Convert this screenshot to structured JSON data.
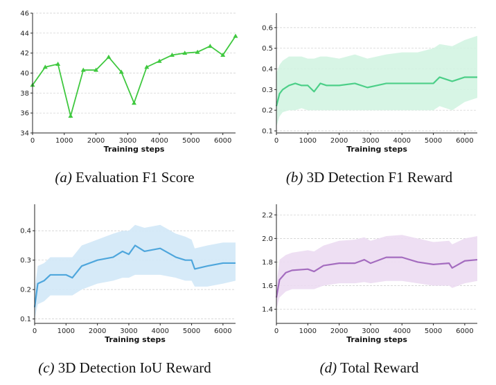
{
  "chart_data": [
    {
      "type": "line",
      "caption_label": "(a)",
      "caption_text": "Evaluation F1 Score",
      "xlabel": "Training steps",
      "ylabel": "",
      "xlim": [
        0,
        6400
      ],
      "ylim": [
        34,
        46
      ],
      "xticks": [
        0,
        1000,
        2000,
        3000,
        4000,
        5000,
        6000
      ],
      "yticks": [
        34,
        36,
        38,
        40,
        42,
        44,
        46
      ],
      "grid": "horizontal dashed",
      "marker": "triangle",
      "color": "#3fc83f",
      "x": [
        0,
        400,
        800,
        1200,
        1600,
        2000,
        2400,
        2800,
        3200,
        3600,
        4000,
        4400,
        4800,
        5200,
        5600,
        6000,
        6400
      ],
      "y": [
        38.8,
        40.6,
        40.9,
        35.7,
        40.3,
        40.3,
        41.6,
        40.1,
        37.0,
        40.6,
        41.2,
        41.8,
        42.0,
        42.1,
        42.7,
        41.8,
        43.7
      ]
    },
    {
      "type": "line",
      "caption_label": "(b)",
      "caption_text": "3D Detection F1 Reward",
      "xlabel": "Training steps",
      "ylabel": "",
      "xlim": [
        0,
        6400
      ],
      "ylim": [
        0.09,
        0.67
      ],
      "xticks": [
        0,
        1000,
        2000,
        3000,
        4000,
        5000,
        6000
      ],
      "yticks": [
        0.1,
        0.2,
        0.3,
        0.4,
        0.5,
        0.6
      ],
      "grid": "horizontal dashed",
      "color": "#4ccf88",
      "band_color": "#d3f4e2",
      "x": [
        0,
        100,
        200,
        400,
        600,
        800,
        1000,
        1200,
        1400,
        1600,
        2000,
        2500,
        2900,
        3200,
        3500,
        4000,
        4500,
        5000,
        5200,
        5600,
        6000,
        6400
      ],
      "smoothed": [
        0.22,
        0.28,
        0.3,
        0.32,
        0.33,
        0.32,
        0.32,
        0.29,
        0.33,
        0.32,
        0.32,
        0.33,
        0.31,
        0.32,
        0.33,
        0.33,
        0.33,
        0.33,
        0.36,
        0.34,
        0.36,
        0.36
      ],
      "band_low": [
        0.12,
        0.17,
        0.19,
        0.2,
        0.2,
        0.21,
        0.2,
        0.2,
        0.2,
        0.2,
        0.2,
        0.2,
        0.2,
        0.2,
        0.2,
        0.2,
        0.2,
        0.2,
        0.22,
        0.2,
        0.24,
        0.26
      ],
      "band_high": [
        0.38,
        0.42,
        0.44,
        0.46,
        0.46,
        0.46,
        0.45,
        0.45,
        0.46,
        0.46,
        0.45,
        0.47,
        0.45,
        0.46,
        0.47,
        0.48,
        0.48,
        0.5,
        0.52,
        0.51,
        0.54,
        0.56
      ]
    },
    {
      "type": "line",
      "caption_label": "(c)",
      "caption_text": "3D Detection IoU Reward",
      "xlabel": "Training steps",
      "ylabel": "",
      "xlim": [
        0,
        6400
      ],
      "ylim": [
        0.085,
        0.49
      ],
      "xticks": [
        0,
        1000,
        2000,
        3000,
        4000,
        5000,
        6000
      ],
      "yticks": [
        0.1,
        0.2,
        0.3,
        0.4
      ],
      "grid": "horizontal dashed",
      "color": "#4ea6dc",
      "band_color": "#d2e8f7",
      "x": [
        0,
        100,
        300,
        500,
        1000,
        1200,
        1500,
        2000,
        2500,
        2800,
        3000,
        3200,
        3500,
        4000,
        4500,
        4800,
        5000,
        5100,
        5500,
        6000,
        6400
      ],
      "smoothed": [
        0.14,
        0.22,
        0.23,
        0.25,
        0.25,
        0.24,
        0.28,
        0.3,
        0.31,
        0.33,
        0.32,
        0.35,
        0.33,
        0.34,
        0.31,
        0.3,
        0.3,
        0.27,
        0.28,
        0.29,
        0.29
      ],
      "band_low": [
        0.1,
        0.15,
        0.16,
        0.18,
        0.18,
        0.18,
        0.2,
        0.22,
        0.23,
        0.24,
        0.24,
        0.25,
        0.25,
        0.25,
        0.24,
        0.23,
        0.23,
        0.21,
        0.21,
        0.22,
        0.23
      ],
      "band_high": [
        0.2,
        0.28,
        0.29,
        0.31,
        0.31,
        0.31,
        0.35,
        0.37,
        0.39,
        0.4,
        0.4,
        0.42,
        0.41,
        0.42,
        0.39,
        0.38,
        0.37,
        0.34,
        0.35,
        0.36,
        0.36
      ]
    },
    {
      "type": "line",
      "caption_label": "(d)",
      "caption_text": "Total Reward",
      "xlabel": "Training steps",
      "ylabel": "",
      "xlim": [
        0,
        6400
      ],
      "ylim": [
        1.28,
        2.29
      ],
      "xticks": [
        0,
        1000,
        2000,
        3000,
        4000,
        5000,
        6000
      ],
      "yticks": [
        1.4,
        1.6,
        1.8,
        2.0,
        2.2
      ],
      "grid": "horizontal dashed",
      "color": "#a46cbf",
      "band_color": "#ecdcf2",
      "x": [
        0,
        100,
        300,
        500,
        1000,
        1200,
        1500,
        2000,
        2500,
        2800,
        3000,
        3500,
        4000,
        4500,
        5000,
        5500,
        5600,
        6000,
        6400
      ],
      "smoothed": [
        1.5,
        1.65,
        1.71,
        1.73,
        1.74,
        1.72,
        1.77,
        1.79,
        1.79,
        1.82,
        1.79,
        1.84,
        1.84,
        1.8,
        1.78,
        1.79,
        1.75,
        1.81,
        1.82
      ],
      "band_low": [
        1.4,
        1.5,
        1.55,
        1.57,
        1.57,
        1.57,
        1.6,
        1.62,
        1.62,
        1.63,
        1.62,
        1.64,
        1.64,
        1.62,
        1.6,
        1.6,
        1.58,
        1.62,
        1.64
      ],
      "band_high": [
        1.6,
        1.82,
        1.86,
        1.88,
        1.9,
        1.89,
        1.94,
        1.98,
        1.99,
        2.01,
        1.98,
        2.02,
        2.03,
        2.0,
        1.97,
        1.98,
        1.95,
        2.0,
        2.02
      ]
    }
  ]
}
